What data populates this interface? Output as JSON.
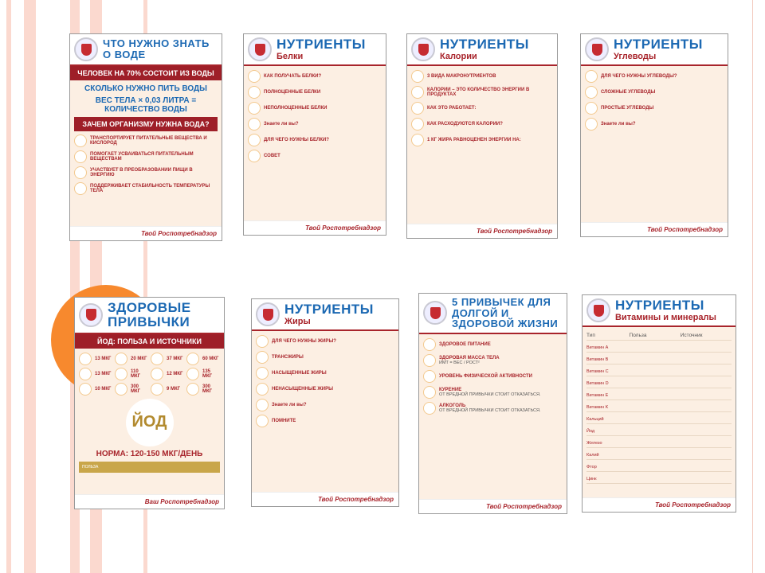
{
  "colors": {
    "accent_red": "#9e1f28",
    "title_blue": "#1c69b3",
    "poster_bg": "#fcefe3",
    "decor_orange": "#f7892e",
    "stripe_pink": "#fbd9cf"
  },
  "posters": [
    {
      "id": "water",
      "title": "ЧТО НУЖНО ЗНАТЬ О ВОДЕ",
      "subtitle": "",
      "banners": [
        "ЧЕЛОВЕК НА 70% СОСТОИТ ИЗ ВОДЫ"
      ],
      "big": [
        "СКОЛЬКО НУЖНО ПИТЬ ВОДЫ",
        "ВЕС ТЕЛА × 0,03 ЛИТРА = КОЛИЧЕСТВО ВОДЫ"
      ],
      "banners2": [
        "ЗАЧЕМ ОРГАНИЗМУ НУЖНА ВОДА?"
      ],
      "items": [
        "ТРАНСПОРТИРУЕТ ПИТАТЕЛЬНЫЕ ВЕЩЕСТВА И КИСЛОРОД",
        "ПОМОГАЕТ УСВАИВАТЬСЯ ПИТАТЕЛЬНЫМ ВЕЩЕСТВАМ",
        "УЧАСТВУЕТ В ПРЕОБРАЗОВАНИИ ПИЩИ В ЭНЕРГИЮ",
        "ПОДДЕРЖИВАЕТ СТАБИЛЬНОСТЬ ТЕМПЕРАТУРЫ ТЕЛА"
      ],
      "footer": "Твой Роспотребнадзор"
    },
    {
      "id": "proteins",
      "title": "НУТРИЕНТЫ",
      "subtitle": "Белки",
      "banners": [],
      "big": [],
      "banners2": [],
      "items": [
        "КАК ПОЛУЧАТЬ БЕЛКИ?",
        "ПОЛНОЦЕННЫЕ БЕЛКИ",
        "НЕПОЛНОЦЕННЫЕ БЕЛКИ",
        "Знаете ли вы?",
        "ДЛЯ ЧЕГО НУЖНЫ БЕЛКИ?",
        "СОВЕТ"
      ],
      "footer": "Твой Роспотребнадзор"
    },
    {
      "id": "calories",
      "title": "НУТРИЕНТЫ",
      "subtitle": "Калории",
      "banners": [],
      "big": [],
      "banners2": [],
      "items": [
        "3 ВИДА МАКРОНУТРИЕНТОВ",
        "КАЛОРИИ – ЭТО КОЛИЧЕСТВО ЭНЕРГИИ В ПРОДУКТАХ",
        "КАК ЭТО РАБОТАЕТ:",
        "КАК РАСХОДУЮТСЯ КАЛОРИИ?",
        "1 КГ ЖИРА РАВНОЦЕНЕН ЭНЕРГИИ НА:"
      ],
      "footer": "Твой Роспотребнадзор"
    },
    {
      "id": "carbs",
      "title": "НУТРИЕНТЫ",
      "subtitle": "Углеводы",
      "banners": [],
      "big": [],
      "banners2": [],
      "items": [
        "ДЛЯ ЧЕГО НУЖНЫ УГЛЕВОДЫ?",
        "СЛОЖНЫЕ УГЛЕВОДЫ",
        "ПРОСТЫЕ УГЛЕВОДЫ",
        "Знаете ли вы?"
      ],
      "footer": "Твой Роспотребнадзор"
    },
    {
      "id": "habits",
      "title": "ЗДОРОВЫЕ ПРИВЫЧКИ",
      "subtitle": "",
      "banners": [
        "ЙОД: ПОЛЬЗА И ИСТОЧНИКИ"
      ],
      "big": [],
      "banners2": [],
      "items": [
        "13 МКГ",
        "20 МКГ",
        "37 МКГ",
        "60 МКГ",
        "13 МКГ",
        "110 МКГ",
        "12 МКГ",
        "135 МКГ",
        "10 МКГ",
        "300 МКГ",
        "9 МКГ",
        "300 МКГ"
      ],
      "center": "ЙОД",
      "norm": "НОРМА: 120-150 МКГ/ДЕНЬ",
      "benefit_label": "ПОЛЬЗА",
      "footer": "Ваш Роспотребнадзор"
    },
    {
      "id": "fats",
      "title": "НУТРИЕНТЫ",
      "subtitle": "Жиры",
      "banners": [],
      "big": [],
      "banners2": [],
      "items": [
        "ДЛЯ ЧЕГО НУЖНЫ ЖИРЫ?",
        "ТРАНСЖИРЫ",
        "НАСЫЩЕННЫЕ ЖИРЫ",
        "НЕНАСЫЩЕННЫЕ ЖИРЫ",
        "Знаете ли вы?",
        "ПОМНИТЕ"
      ],
      "footer": "Твой Роспотребнадзор"
    },
    {
      "id": "five-habits",
      "title": "5 ПРИВЫЧЕК ДЛЯ ДОЛГОЙ И ЗДОРОВОЙ ЖИЗНИ",
      "subtitle": "",
      "banners": [],
      "big": [],
      "banners2": [],
      "items": [
        "ЗДОРОВОЕ ПИТАНИЕ",
        "ЗДОРОВАЯ МАССА ТЕЛА",
        "УРОВЕНЬ ФИЗИЧЕСКОЙ АКТИВНОСТИ",
        "КУРЕНИЕ",
        "АЛКОГОЛЬ"
      ],
      "notes": [
        "",
        "ИМТ = ВЕС / РОСТ²",
        "",
        "ОТ ВРЕДНОЙ ПРИВЫЧКИ СТОИТ ОТКАЗАТЬСЯ.",
        "ОТ ВРЕДНОЙ ПРИВЫЧКИ СТОИТ ОТКАЗАТЬСЯ."
      ],
      "footer": "Твой Роспотребнадзор"
    },
    {
      "id": "vitamins",
      "title": "НУТРИЕНТЫ",
      "subtitle": "Витамины и минералы",
      "banners": [],
      "big": [],
      "banners2": [],
      "columns": [
        "Тип",
        "Польза",
        "Источник"
      ],
      "items": [
        "Витамин A",
        "Витамин B",
        "Витамин C",
        "Витамин D",
        "Витамин E",
        "Витамин K",
        "Кальций",
        "Йод",
        "Железо",
        "Калий",
        "Фтор",
        "Цинк"
      ],
      "footer": "Твой Роспотребнадзор"
    }
  ]
}
